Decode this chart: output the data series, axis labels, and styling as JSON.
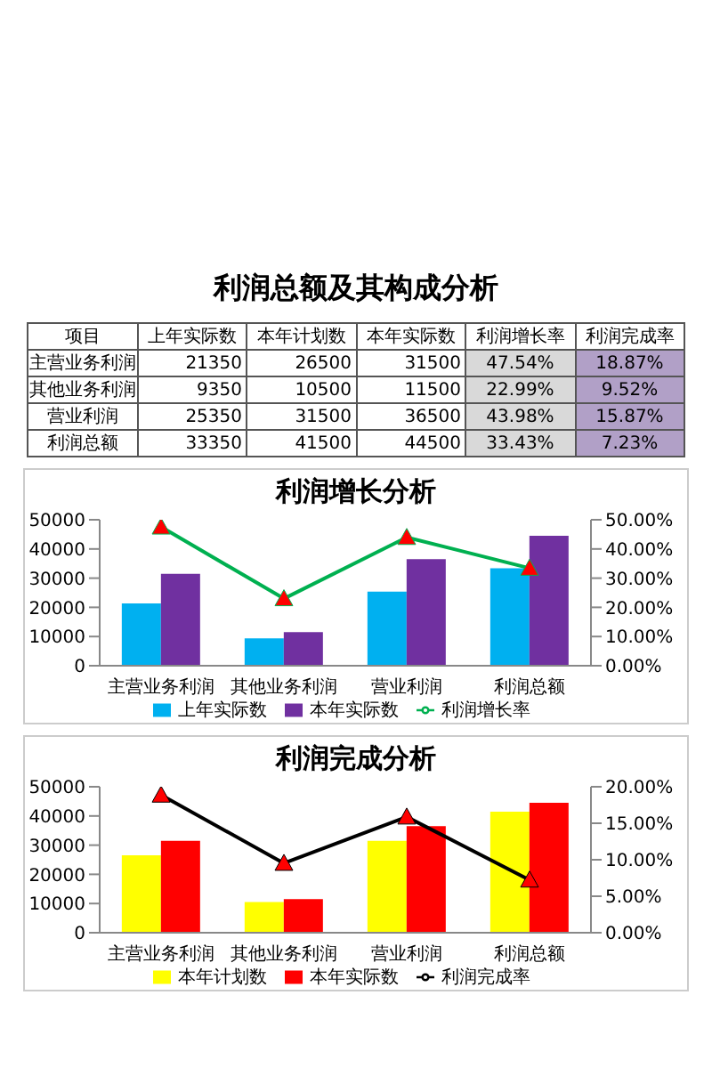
{
  "chart_data": [
    {
      "type": "other",
      "title": "利润总额及其构成分析",
      "categories": [
        "项目",
        "上年实际数",
        "本年计划数",
        "本年实际数",
        "利润增长率",
        "利润完成率"
      ],
      "y_categories": [
        "主营业务利润",
        "其他业务利润",
        "营业利润",
        "利润总额"
      ],
      "cell_labels": [
        [
          "21350",
          "26500",
          "31500",
          "47.54%",
          "18.87%"
        ],
        [
          "9350",
          "10500",
          "11500",
          "22.99%",
          "9.52%"
        ],
        [
          "25350",
          "31500",
          "36500",
          "43.98%",
          "15.87%"
        ],
        [
          "33350",
          "41500",
          "44500",
          "33.43%",
          "7.23%"
        ]
      ],
      "colors": [
        null,
        null,
        null,
        "#d9d9d9",
        "#b1a0c7"
      ]
    },
    {
      "type": "bar",
      "title": "利润增长分析",
      "categories": [
        "主营业务利润",
        "其他业务利润",
        "营业利润",
        "利润总额"
      ],
      "series": [
        {
          "name": "上年实际数",
          "color": "#00b0f0",
          "values": [
            21350,
            9350,
            25350,
            33350
          ]
        },
        {
          "name": "本年实际数",
          "color": "#7030a0",
          "values": [
            31500,
            11500,
            36500,
            44500
          ]
        },
        {
          "name": "利润增长率",
          "type": "line",
          "axis": "y2",
          "color": "#00b050",
          "values": [
            47.54,
            22.99,
            43.98,
            33.43
          ]
        }
      ],
      "ylim": [
        0,
        50000
      ],
      "yticks": [
        0,
        10000,
        20000,
        30000,
        40000,
        50000
      ],
      "y2lim": [
        0,
        50
      ],
      "y2ticks": [
        {
          "value": 0,
          "label": "0.00%"
        },
        {
          "value": 10,
          "label": "10.00%"
        },
        {
          "value": 20,
          "label": "20.00%"
        },
        {
          "value": 30,
          "label": "30.00%"
        },
        {
          "value": 40,
          "label": "40.00%"
        },
        {
          "value": 50,
          "label": "50.00%"
        }
      ],
      "legend": "bottom",
      "marker": "triangle",
      "line_style": "solid"
    },
    {
      "type": "bar",
      "title": "利润完成分析",
      "categories": [
        "主营业务利润",
        "其他业务利润",
        "营业利润",
        "利润总额"
      ],
      "series": [
        {
          "name": "本年计划数",
          "color": "#ffff00",
          "values": [
            26500,
            10500,
            31500,
            41500
          ]
        },
        {
          "name": "本年实际数",
          "color": "#ff0000",
          "values": [
            31500,
            11500,
            36500,
            44500
          ]
        },
        {
          "name": "利润完成率",
          "type": "line",
          "axis": "y2",
          "color": "#000000",
          "values": [
            18.87,
            9.52,
            15.87,
            7.23
          ]
        }
      ],
      "ylim": [
        0,
        50000
      ],
      "yticks": [
        0,
        10000,
        20000,
        30000,
        40000,
        50000
      ],
      "y2lim": [
        0,
        20
      ],
      "y2ticks": [
        {
          "value": 0,
          "label": "0.00%"
        },
        {
          "value": 5,
          "label": "5.00%"
        },
        {
          "value": 10,
          "label": "10.00%"
        },
        {
          "value": 15,
          "label": "15.00%"
        },
        {
          "value": 20,
          "label": "20.00%"
        }
      ],
      "legend": "bottom",
      "marker": "triangle",
      "line_style": "solid"
    }
  ]
}
